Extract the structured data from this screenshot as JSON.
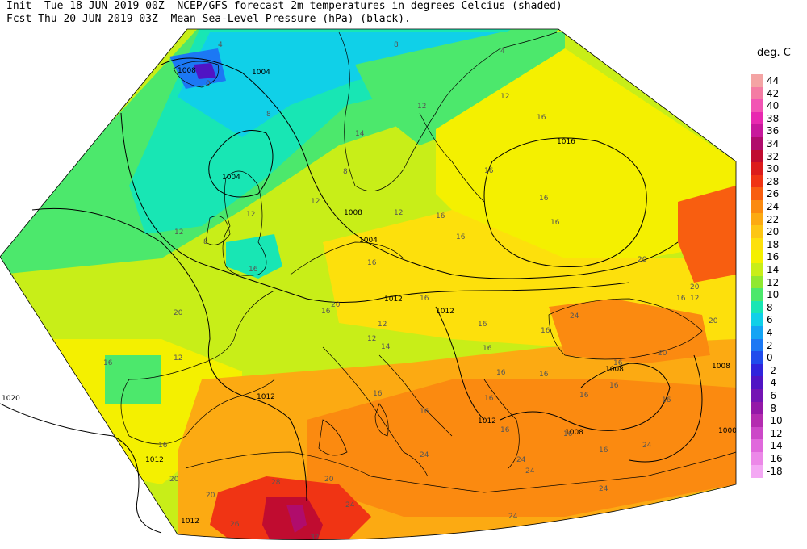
{
  "header": {
    "line1": "Init  Tue 18 JUN 2019 00Z  NCEP/GFS forecast 2m temperatures in degrees Celcius (shaded)",
    "line2": "Fcst Thu 20 JUN 2019 03Z  Mean Sea-Level Pressure (hPa) (black)."
  },
  "legend": {
    "title": "deg. C",
    "items": [
      {
        "value": "44",
        "color": "#f4a4a4"
      },
      {
        "value": "42",
        "color": "#f47ca4"
      },
      {
        "value": "40",
        "color": "#f254b4"
      },
      {
        "value": "38",
        "color": "#e828b0"
      },
      {
        "value": "36",
        "color": "#c8189c"
      },
      {
        "value": "34",
        "color": "#b00c6c"
      },
      {
        "value": "32",
        "color": "#c00c30"
      },
      {
        "value": "30",
        "color": "#dc1c1c"
      },
      {
        "value": "28",
        "color": "#f03414"
      },
      {
        "value": "26",
        "color": "#f85e10"
      },
      {
        "value": "24",
        "color": "#fb8a10"
      },
      {
        "value": "22",
        "color": "#fcaa12"
      },
      {
        "value": "20",
        "color": "#fdc614"
      },
      {
        "value": "18",
        "color": "#fde00c"
      },
      {
        "value": "16",
        "color": "#f4f000"
      },
      {
        "value": "14",
        "color": "#c8ee18"
      },
      {
        "value": "12",
        "color": "#90e830"
      },
      {
        "value": "10",
        "color": "#4ce86c"
      },
      {
        "value": "8",
        "color": "#18e6b4"
      },
      {
        "value": "6",
        "color": "#10d0e8"
      },
      {
        "value": "4",
        "color": "#14a4f4"
      },
      {
        "value": "2",
        "color": "#1c78f4"
      },
      {
        "value": "0",
        "color": "#204cec"
      },
      {
        "value": "-2",
        "color": "#3024dc"
      },
      {
        "value": "-4",
        "color": "#5014c4"
      },
      {
        "value": "-6",
        "color": "#7414b4"
      },
      {
        "value": "-8",
        "color": "#9418a8"
      },
      {
        "value": "-10",
        "color": "#b42cb0"
      },
      {
        "value": "-12",
        "color": "#cc48c8"
      },
      {
        "value": "-14",
        "color": "#e068dc"
      },
      {
        "value": "-16",
        "color": "#ec88e8"
      },
      {
        "value": "-18",
        "color": "#f4a8f4"
      }
    ]
  },
  "map": {
    "temperature_labels": [
      "8",
      "4",
      "0",
      "4",
      "12",
      "12",
      "14",
      "12",
      "16",
      "16",
      "16",
      "16",
      "16",
      "8",
      "8",
      "12",
      "12",
      "16",
      "16",
      "16",
      "16",
      "16",
      "20",
      "20",
      "16",
      "12",
      "8",
      "16",
      "12",
      "12",
      "14",
      "16",
      "16",
      "16",
      "16",
      "16",
      "16",
      "24",
      "20",
      "20",
      "16",
      "12",
      "16",
      "16",
      "16",
      "16",
      "16",
      "16",
      "16",
      "20",
      "24",
      "20",
      "24",
      "24",
      "24",
      "24",
      "26",
      "28",
      "32",
      "24",
      "20",
      "24",
      "16",
      "20",
      "20",
      "12",
      "16"
    ],
    "pressure_labels": [
      "1004",
      "1008",
      "1004",
      "1008",
      "1004",
      "1012",
      "1012",
      "1016",
      "1008",
      "1008",
      "1012",
      "1012",
      "1008",
      "1012",
      "1020",
      "1012",
      "1000"
    ]
  }
}
